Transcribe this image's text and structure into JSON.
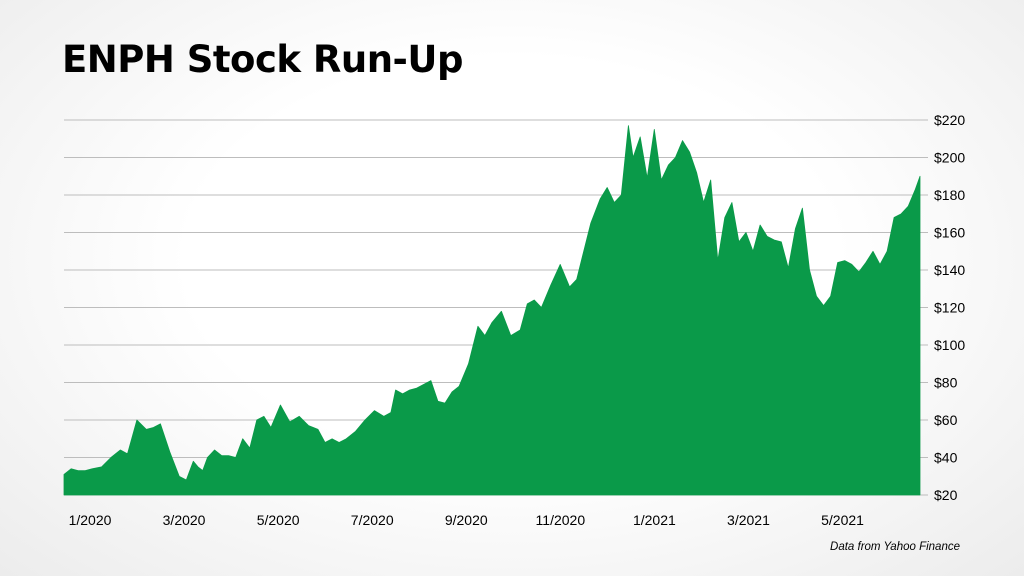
{
  "title": "ENPH Stock Run-Up",
  "source_note": "Data from Yahoo Finance",
  "chart_data": {
    "type": "area",
    "title": "ENPH Stock Run-Up",
    "xlabel": "",
    "ylabel": "",
    "ylim": [
      20,
      220
    ],
    "y_ticks": [
      20,
      40,
      60,
      80,
      100,
      120,
      140,
      160,
      180,
      200,
      220
    ],
    "y_tick_labels": [
      "$20",
      "$40",
      "$60",
      "$80",
      "$100",
      "$120",
      "$140",
      "$160",
      "$180",
      "$200",
      "$220"
    ],
    "x_tick_labels": [
      "1/2020",
      "3/2020",
      "5/2020",
      "7/2020",
      "9/2020",
      "11/2020",
      "1/2021",
      "3/2021",
      "5/2021"
    ],
    "x_tick_positions": [
      0,
      2,
      4,
      6,
      8,
      10,
      12,
      14,
      16
    ],
    "x_unit": "months since 1/2020",
    "xlim": [
      0,
      18.2
    ],
    "y_axis_position": "right",
    "grid": true,
    "fill_color": "#0a9a49",
    "series": [
      {
        "x": [
          0,
          0.15,
          0.3,
          0.45,
          0.6,
          0.8,
          1.0,
          1.2,
          1.35,
          1.55,
          1.75,
          1.9,
          2.05,
          2.25,
          2.45,
          2.6,
          2.75,
          2.85,
          2.95,
          3.05,
          3.2,
          3.35,
          3.5,
          3.65,
          3.8,
          3.95,
          4.1,
          4.25,
          4.4,
          4.6,
          4.8,
          5.0,
          5.2,
          5.4,
          5.55,
          5.7,
          5.85,
          6.0,
          6.2,
          6.4,
          6.6,
          6.8,
          6.95,
          7.05,
          7.2,
          7.35,
          7.5,
          7.65,
          7.8,
          7.95,
          8.1,
          8.25,
          8.4,
          8.6,
          8.8,
          8.95,
          9.1,
          9.3,
          9.5,
          9.7,
          9.85,
          10.0,
          10.15,
          10.35,
          10.55,
          10.75,
          10.9,
          11.05,
          11.2,
          11.4,
          11.55,
          11.7,
          11.85,
          12.0,
          12.1,
          12.25,
          12.4,
          12.55,
          12.7,
          12.85,
          13.0,
          13.15,
          13.3,
          13.45,
          13.6,
          13.75,
          13.9,
          14.05,
          14.2,
          14.35,
          14.5,
          14.65,
          14.8,
          14.95,
          15.1,
          15.25,
          15.4,
          15.55,
          15.7,
          15.85,
          16.0,
          16.15,
          16.3,
          16.45,
          16.6,
          16.75,
          16.9,
          17.05,
          17.2,
          17.35,
          17.5,
          17.65,
          17.8,
          17.95,
          18.1,
          18.2
        ],
        "values": [
          31,
          34,
          33,
          33,
          34,
          35,
          40,
          44,
          42,
          60,
          55,
          56,
          58,
          43,
          30,
          28,
          38,
          35,
          33,
          40,
          44,
          41,
          41,
          40,
          50,
          45,
          60,
          62,
          56,
          68,
          59,
          62,
          57,
          55,
          48,
          50,
          48,
          50,
          54,
          60,
          65,
          62,
          64,
          76,
          74,
          76,
          77,
          79,
          81,
          70,
          69,
          75,
          78,
          90,
          110,
          105,
          112,
          118,
          105,
          108,
          122,
          124,
          120,
          132,
          143,
          131,
          135,
          150,
          165,
          178,
          184,
          176,
          180,
          217,
          200,
          211,
          189,
          215,
          188,
          196,
          200,
          209,
          203,
          192,
          176,
          188,
          145,
          168,
          176,
          155,
          160,
          150,
          164,
          158,
          156,
          155,
          141,
          162,
          173,
          140,
          126,
          121,
          126,
          144,
          145,
          143,
          139,
          144,
          150,
          143,
          150,
          168,
          170,
          174,
          183,
          190
        ]
      }
    ]
  }
}
